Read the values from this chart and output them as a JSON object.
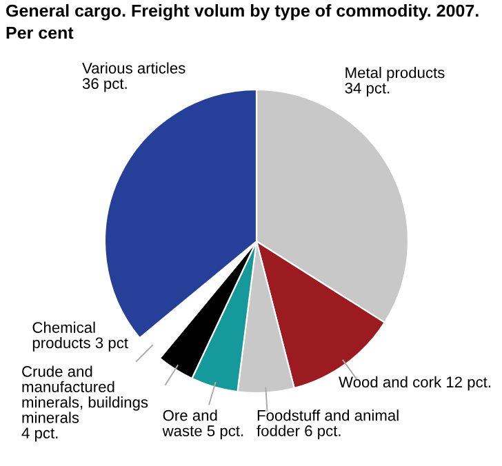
{
  "chart_data": {
    "type": "pie",
    "title": "General cargo. Freight volum by type of commodity. 2007.",
    "subtitle": "Per cent",
    "categories": [
      "Metal products",
      "Wood and cork",
      "Foodstuff and animal fodder",
      "Ore and waste",
      "Crude and manufactured minerals, buildings minerals",
      "Chemical products",
      "Various articles"
    ],
    "values": [
      34,
      12,
      6,
      5,
      4,
      3,
      36
    ],
    "colors": [
      "#c8c8c8",
      "#9b1b20",
      "#c8c8c8",
      "#16999a",
      "#000000",
      "#ffffff",
      "#263f99"
    ],
    "value_labels": [
      "34 pct.",
      "12 pct.",
      "6 pct.",
      "5 pct.",
      "4 pct.",
      "3 pct",
      "36 pct."
    ],
    "legend": false
  }
}
